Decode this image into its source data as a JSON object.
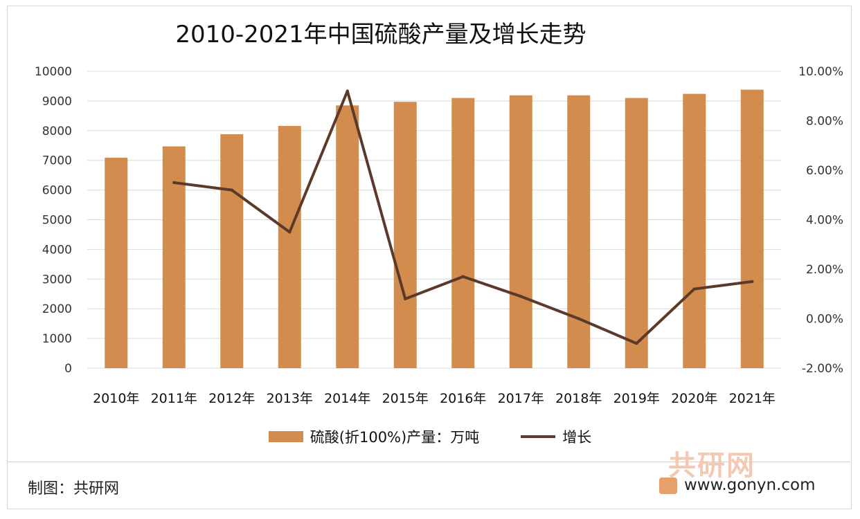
{
  "chart_data": {
    "type": "bar",
    "title": "2010-2021年中国硫酸产量及增长走势",
    "categories": [
      "2010年",
      "2011年",
      "2012年",
      "2013年",
      "2014年",
      "2015年",
      "2016年",
      "2017年",
      "2018年",
      "2019年",
      "2020年",
      "2021年"
    ],
    "series": [
      {
        "name": "硫酸(折100%)产量：万吨",
        "type": "bar",
        "axis": "left",
        "values": [
          7090,
          7470,
          7880,
          8160,
          8850,
          8970,
          9100,
          9190,
          9190,
          9100,
          9240,
          9380
        ]
      },
      {
        "name": "增长",
        "type": "line",
        "axis": "right",
        "values": [
          null,
          5.5,
          5.2,
          3.5,
          9.2,
          0.8,
          1.7,
          0.9,
          0.0,
          -1.0,
          1.2,
          1.5
        ]
      }
    ],
    "y_left": {
      "min": 0,
      "max": 10000,
      "ticks": [
        "0",
        "1000",
        "2000",
        "3000",
        "4000",
        "5000",
        "6000",
        "7000",
        "8000",
        "9000",
        "10000"
      ]
    },
    "y_right": {
      "min": -2,
      "max": 10,
      "ticks": [
        "-2.00%",
        "0.00%",
        "2.00%",
        "4.00%",
        "6.00%",
        "8.00%",
        "10.00%"
      ]
    },
    "grid": true,
    "legend_position": "bottom",
    "colors": {
      "bar": "#d28d4e",
      "line": "#5b3a2a",
      "grid": "#d9d9d9"
    }
  },
  "footer": {
    "source_label": "制图：共研网",
    "logo_text": "共研网",
    "url": "www.gonyn.com"
  }
}
